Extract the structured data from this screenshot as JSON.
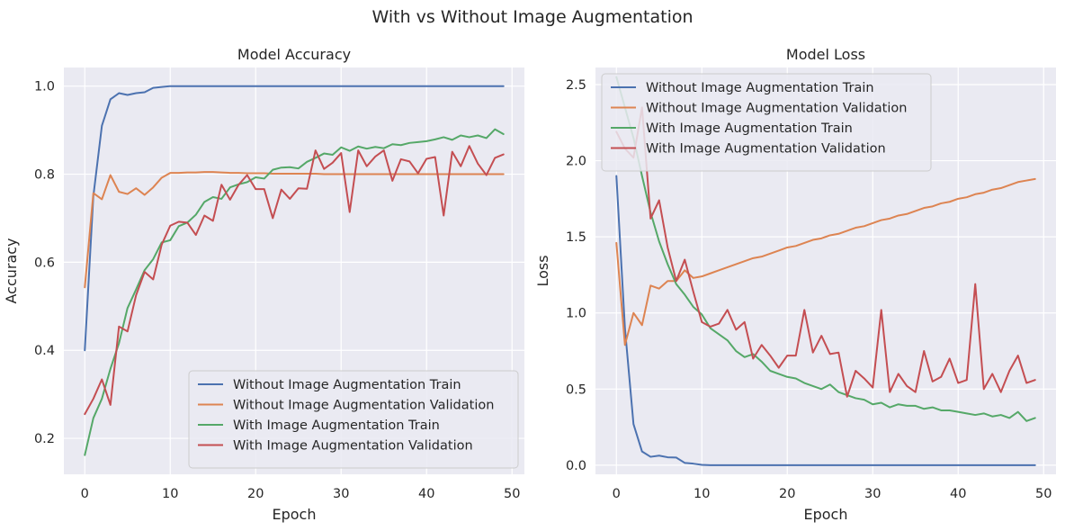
{
  "figure": {
    "suptitle": "With vs Without Image Augmentation"
  },
  "colors": {
    "axes_bg": "#eaeaf2",
    "grid": "#ffffff",
    "text": "#262626"
  },
  "chart_data": [
    {
      "type": "line",
      "title": "Model Accuracy",
      "xlabel": "Epoch",
      "ylabel": "Accuracy",
      "xlim": [
        -2.45,
        51.45
      ],
      "ylim": [
        0.1184,
        1.0423
      ],
      "xticks": [
        0,
        10,
        20,
        30,
        40,
        50
      ],
      "yticks": [
        0.2,
        0.4,
        0.6,
        0.8,
        1.0
      ],
      "ytick_labels": [
        "0.2",
        "0.4",
        "0.6",
        "0.8",
        "1.0"
      ],
      "grid": true,
      "legend_position": "lower-right",
      "x": [
        0,
        1,
        2,
        3,
        4,
        5,
        6,
        7,
        8,
        9,
        10,
        11,
        12,
        13,
        14,
        15,
        16,
        17,
        18,
        19,
        20,
        21,
        22,
        23,
        24,
        25,
        26,
        27,
        28,
        29,
        30,
        31,
        32,
        33,
        34,
        35,
        36,
        37,
        38,
        39,
        40,
        41,
        42,
        43,
        44,
        45,
        46,
        47,
        48,
        49
      ],
      "series": [
        {
          "name": "Without Image Augmentation Train",
          "color": "#4c72b0",
          "values": [
            0.4,
            0.75,
            0.91,
            0.97,
            0.984,
            0.98,
            0.984,
            0.986,
            0.996,
            0.998,
            1,
            1,
            1,
            1,
            1,
            1,
            1,
            1,
            1,
            1,
            1,
            1,
            1,
            1,
            1,
            1,
            1,
            1,
            1,
            1,
            1,
            1,
            1,
            1,
            1,
            1,
            1,
            1,
            1,
            1,
            1,
            1,
            1,
            1,
            1,
            1,
            1,
            1,
            1,
            1
          ]
        },
        {
          "name": "Without Image Augmentation Validation",
          "color": "#dd8452",
          "values": [
            0.543,
            0.757,
            0.743,
            0.798,
            0.76,
            0.755,
            0.768,
            0.753,
            0.77,
            0.792,
            0.803,
            0.803,
            0.804,
            0.804,
            0.805,
            0.805,
            0.804,
            0.803,
            0.803,
            0.802,
            0.802,
            0.802,
            0.801,
            0.801,
            0.801,
            0.801,
            0.801,
            0.801,
            0.8,
            0.8,
            0.8,
            0.8,
            0.8,
            0.8,
            0.8,
            0.8,
            0.8,
            0.8,
            0.8,
            0.8,
            0.8,
            0.8,
            0.8,
            0.8,
            0.8,
            0.8,
            0.8,
            0.8,
            0.8,
            0.8
          ]
        },
        {
          "name": "With Image Augmentation Train",
          "color": "#55a868",
          "values": [
            0.162,
            0.246,
            0.29,
            0.358,
            0.416,
            0.496,
            0.538,
            0.582,
            0.607,
            0.645,
            0.65,
            0.682,
            0.69,
            0.708,
            0.737,
            0.748,
            0.744,
            0.77,
            0.777,
            0.782,
            0.793,
            0.79,
            0.81,
            0.815,
            0.816,
            0.813,
            0.828,
            0.837,
            0.847,
            0.844,
            0.861,
            0.853,
            0.863,
            0.858,
            0.862,
            0.859,
            0.868,
            0.866,
            0.871,
            0.873,
            0.875,
            0.879,
            0.884,
            0.878,
            0.888,
            0.884,
            0.888,
            0.882,
            0.902,
            0.891
          ]
        },
        {
          "name": "With Image Augmentation Validation",
          "color": "#c44e52",
          "values": [
            0.255,
            0.29,
            0.334,
            0.276,
            0.454,
            0.443,
            0.525,
            0.578,
            0.561,
            0.64,
            0.683,
            0.692,
            0.69,
            0.662,
            0.706,
            0.694,
            0.776,
            0.742,
            0.776,
            0.798,
            0.766,
            0.766,
            0.7,
            0.765,
            0.744,
            0.768,
            0.767,
            0.854,
            0.812,
            0.826,
            0.848,
            0.714,
            0.854,
            0.818,
            0.84,
            0.854,
            0.785,
            0.834,
            0.829,
            0.802,
            0.835,
            0.839,
            0.706,
            0.851,
            0.818,
            0.864,
            0.824,
            0.798,
            0.837,
            0.845
          ]
        }
      ]
    },
    {
      "type": "line",
      "title": "Model Loss",
      "xlabel": "Epoch",
      "ylabel": "Loss",
      "xlim": [
        -2.45,
        51.45
      ],
      "ylim": [
        -0.0599,
        2.6124
      ],
      "xticks": [
        0,
        10,
        20,
        30,
        40,
        50
      ],
      "yticks": [
        0.0,
        0.5,
        1.0,
        1.5,
        2.0,
        2.5
      ],
      "ytick_labels": [
        "0.0",
        "0.5",
        "1.0",
        "1.5",
        "2.0",
        "2.5"
      ],
      "grid": true,
      "legend_position": "upper-left",
      "x": [
        0,
        1,
        2,
        3,
        4,
        5,
        6,
        7,
        8,
        9,
        10,
        11,
        12,
        13,
        14,
        15,
        16,
        17,
        18,
        19,
        20,
        21,
        22,
        23,
        24,
        25,
        26,
        27,
        28,
        29,
        30,
        31,
        32,
        33,
        34,
        35,
        36,
        37,
        38,
        39,
        40,
        41,
        42,
        43,
        44,
        45,
        46,
        47,
        48,
        49
      ],
      "series": [
        {
          "name": "Without Image Augmentation Train",
          "color": "#4c72b0",
          "values": [
            1.9,
            0.9,
            0.27,
            0.09,
            0.055,
            0.063,
            0.052,
            0.05,
            0.015,
            0.01,
            0.002,
            0,
            0,
            0,
            0,
            0,
            0,
            0,
            0,
            0,
            0,
            0,
            0,
            0,
            0,
            0,
            0,
            0,
            0,
            0,
            0,
            0,
            0,
            0,
            0,
            0,
            0,
            0,
            0,
            0,
            0,
            0,
            0,
            0,
            0,
            0,
            0,
            0,
            0,
            0
          ]
        },
        {
          "name": "Without Image Augmentation Validation",
          "color": "#dd8452",
          "values": [
            1.46,
            0.79,
            1.0,
            0.92,
            1.18,
            1.16,
            1.21,
            1.21,
            1.28,
            1.23,
            1.24,
            1.26,
            1.28,
            1.3,
            1.32,
            1.34,
            1.36,
            1.37,
            1.39,
            1.41,
            1.43,
            1.44,
            1.46,
            1.48,
            1.49,
            1.51,
            1.52,
            1.54,
            1.56,
            1.57,
            1.59,
            1.61,
            1.62,
            1.64,
            1.65,
            1.67,
            1.69,
            1.7,
            1.72,
            1.73,
            1.75,
            1.76,
            1.78,
            1.79,
            1.81,
            1.82,
            1.84,
            1.86,
            1.87,
            1.88
          ]
        },
        {
          "name": "With Image Augmentation Train",
          "color": "#55a868",
          "values": [
            2.55,
            2.35,
            2.15,
            1.9,
            1.66,
            1.47,
            1.32,
            1.19,
            1.12,
            1.04,
            0.99,
            0.9,
            0.86,
            0.82,
            0.75,
            0.71,
            0.73,
            0.68,
            0.62,
            0.6,
            0.58,
            0.57,
            0.54,
            0.52,
            0.5,
            0.53,
            0.48,
            0.46,
            0.44,
            0.43,
            0.4,
            0.41,
            0.38,
            0.4,
            0.39,
            0.39,
            0.37,
            0.38,
            0.36,
            0.36,
            0.35,
            0.34,
            0.33,
            0.34,
            0.32,
            0.33,
            0.31,
            0.35,
            0.29,
            0.31
          ]
        },
        {
          "name": "With Image Augmentation Validation",
          "color": "#c44e52",
          "values": [
            2.19,
            2.08,
            2.02,
            2.35,
            1.62,
            1.74,
            1.43,
            1.21,
            1.35,
            1.14,
            0.94,
            0.91,
            0.93,
            1.02,
            0.89,
            0.94,
            0.7,
            0.79,
            0.72,
            0.64,
            0.72,
            0.72,
            1.02,
            0.74,
            0.85,
            0.73,
            0.74,
            0.45,
            0.62,
            0.57,
            0.51,
            1.02,
            0.48,
            0.6,
            0.52,
            0.48,
            0.75,
            0.55,
            0.58,
            0.7,
            0.54,
            0.56,
            1.19,
            0.5,
            0.6,
            0.48,
            0.62,
            0.72,
            0.54,
            0.56
          ]
        }
      ]
    }
  ]
}
